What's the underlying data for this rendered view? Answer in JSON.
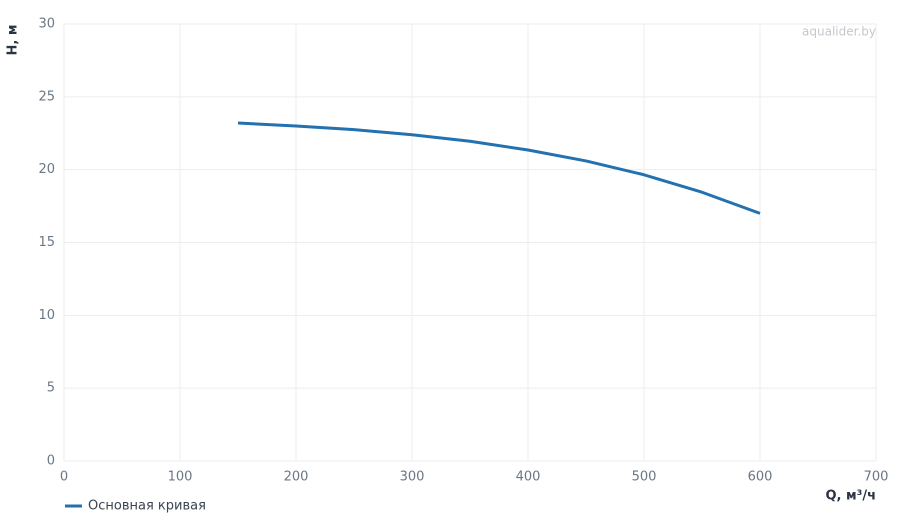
{
  "chart_data": {
    "type": "line",
    "watermark": "aqualider.by",
    "x_label": "Q, м³/ч",
    "y_label": "H, м",
    "x": [
      150,
      200,
      250,
      300,
      350,
      400,
      450,
      500,
      550,
      600
    ],
    "series": [
      {
        "name": "Основная кривая",
        "color": "#2471b0",
        "values": [
          23.2,
          23.0,
          22.75,
          22.4,
          21.95,
          21.35,
          20.6,
          19.65,
          18.45,
          17.0
        ]
      }
    ],
    "xlim": [
      0,
      700
    ],
    "xticks": [
      0,
      100,
      200,
      300,
      400,
      500,
      600,
      700
    ],
    "ylim": [
      0,
      30
    ],
    "yticks": [
      0,
      5,
      10,
      15,
      20,
      25,
      30
    ],
    "grid": true,
    "legend": "bottom-left"
  }
}
